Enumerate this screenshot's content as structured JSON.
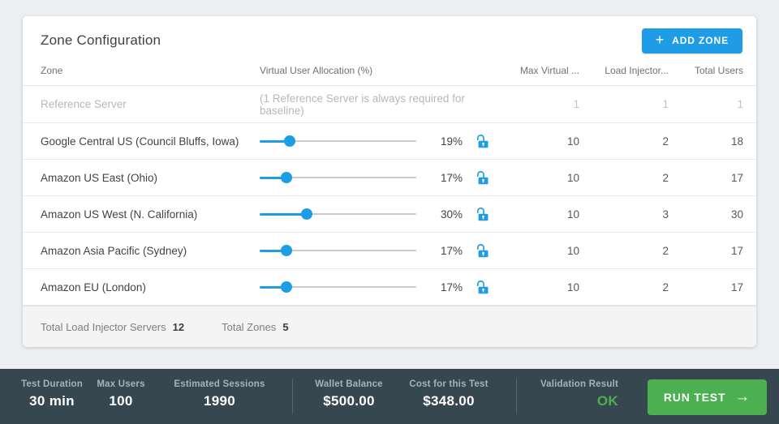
{
  "colors": {
    "accent_blue": "#1e9ce5",
    "green": "#4caf50",
    "dark_bar": "#37474f",
    "page_bg": "#eceff1"
  },
  "panel": {
    "title": "Zone Configuration",
    "add_zone_label": "ADD ZONE",
    "columns": {
      "zone": "Zone",
      "allocation": "Virtual User Allocation (%)",
      "max_virtual": "Max Virtual ...",
      "load_injectors": "Load Injector...",
      "total_users": "Total Users"
    },
    "reference_row": {
      "zone": "Reference Server",
      "note": "(1 Reference Server is always required for baseline)",
      "max_virtual": "1",
      "load_injectors": "1",
      "total_users": "1"
    },
    "rows": [
      {
        "zone": "Google Central US (Council Bluffs, Iowa)",
        "allocation": 19,
        "allocation_label": "19%",
        "max_virtual": "10",
        "load_injectors": "2",
        "total_users": "18"
      },
      {
        "zone": "Amazon US East (Ohio)",
        "allocation": 17,
        "allocation_label": "17%",
        "max_virtual": "10",
        "load_injectors": "2",
        "total_users": "17"
      },
      {
        "zone": "Amazon US West (N. California)",
        "allocation": 30,
        "allocation_label": "30%",
        "max_virtual": "10",
        "load_injectors": "3",
        "total_users": "30"
      },
      {
        "zone": "Amazon Asia Pacific (Sydney)",
        "allocation": 17,
        "allocation_label": "17%",
        "max_virtual": "10",
        "load_injectors": "2",
        "total_users": "17"
      },
      {
        "zone": "Amazon EU (London)",
        "allocation": 17,
        "allocation_label": "17%",
        "max_virtual": "10",
        "load_injectors": "2",
        "total_users": "17"
      }
    ],
    "totals": {
      "load_injector_label": "Total Load Injector Servers",
      "load_injector_value": "12",
      "zones_label": "Total Zones",
      "zones_value": "5"
    }
  },
  "status_bar": {
    "test_duration_label": "Test Duration",
    "test_duration_value": "30 min",
    "max_users_label": "Max Users",
    "max_users_value": "100",
    "estimated_sessions_label": "Estimated Sessions",
    "estimated_sessions_value": "1990",
    "wallet_balance_label": "Wallet Balance",
    "wallet_balance_value": "$500.00",
    "cost_label": "Cost for this Test",
    "cost_value": "$348.00",
    "validation_label": "Validation Result",
    "validation_value": "OK",
    "run_test_label": "RUN TEST"
  }
}
